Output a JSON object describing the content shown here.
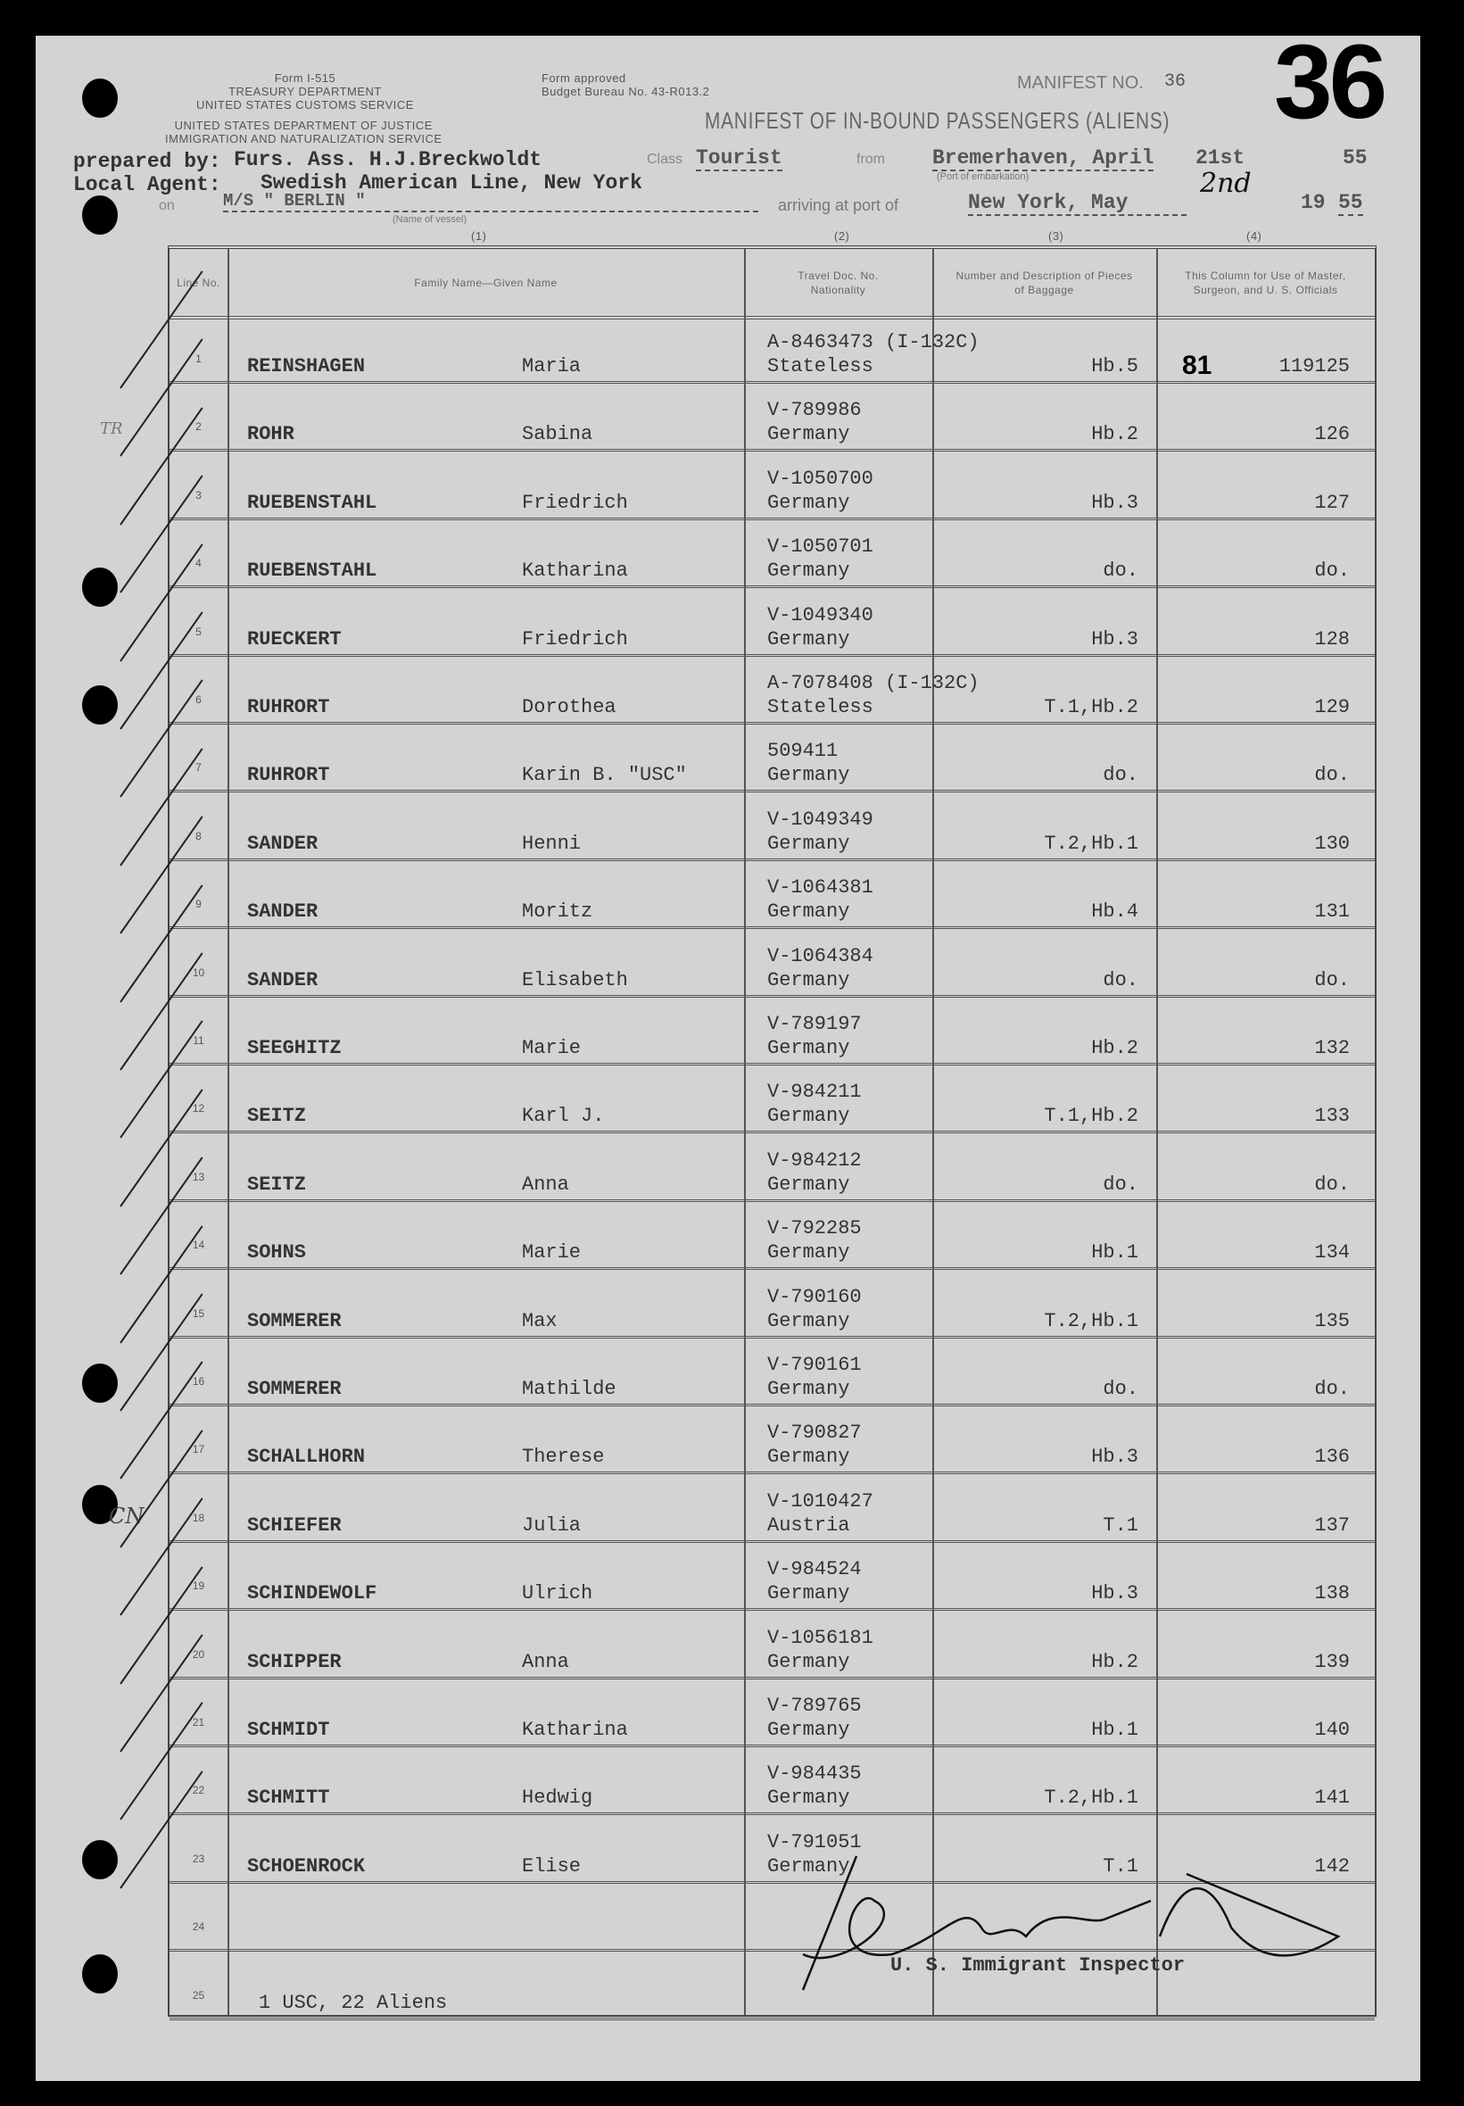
{
  "form": {
    "form_no": "Form I-515",
    "dept1": "TREASURY DEPARTMENT",
    "dept2": "UNITED STATES CUSTOMS SERVICE",
    "dept3": "UNITED STATES DEPARTMENT OF JUSTICE",
    "dept4": "IMMIGRATION AND NATURALIZATION SERVICE",
    "approved1": "Form approved",
    "approved2": "Budget Bureau No. 43-R013.2",
    "manifest_no_label": "MANIFEST NO.",
    "manifest_no_small": "36",
    "manifest_no_big": "36",
    "title": "MANIFEST OF IN-BOUND PASSENGERS (ALIENS)"
  },
  "header": {
    "prepared_by_label": "prepared by:",
    "prepared_by": "Furs. Ass. H.J.Breckwoldt",
    "class_label": "Class",
    "class": "Tourist",
    "from_label": "from",
    "from": "Bremerhaven, April",
    "from_day": "21st",
    "from_year": "55",
    "port_of_embarkation_label": "(Port of embarkation)",
    "local_agent_label": "Local Agent:",
    "local_agent": "Swedish American Line, New York",
    "on_label": "on",
    "vessel": "M/S \" BERLIN \"",
    "vessel_label": "(Name of vessel)",
    "arriving_label": "arriving at port of",
    "arrival_port": "New York,  May",
    "arrival_day": "2nd",
    "arrival_year_prefix": "19",
    "arrival_year": "55"
  },
  "columns": {
    "numbers": [
      "(1)",
      "(2)",
      "(3)",
      "(4)"
    ],
    "line_no": "Line No.",
    "name": "Family Name—Given Name",
    "travel_doc": "Travel Doc. No. Nationality",
    "baggage": "Number and Description of Pieces of Baggage",
    "officials": "This Column for Use of Master, Surgeon, and U. S. Officials"
  },
  "rows": [
    {
      "no": "1",
      "family": "REINSHAGEN",
      "given": "Maria",
      "doc": "A-8463473 (I-132C)",
      "nationality": "Stateless",
      "baggage": "Hb.5",
      "official": "119125",
      "mark": "81"
    },
    {
      "no": "2",
      "family": "ROHR",
      "given": "Sabina",
      "doc": "V-789986",
      "nationality": "Germany",
      "baggage": "Hb.2",
      "official": "126"
    },
    {
      "no": "3",
      "family": "RUEBENSTAHL",
      "given": "Friedrich",
      "doc": "V-1050700",
      "nationality": "Germany",
      "baggage": "Hb.3",
      "official": "127"
    },
    {
      "no": "4",
      "family": "RUEBENSTAHL",
      "given": "Katharina",
      "doc": "V-1050701",
      "nationality": "Germany",
      "baggage": "do.",
      "official": "do."
    },
    {
      "no": "5",
      "family": "RUECKERT",
      "given": "Friedrich",
      "doc": "V-1049340",
      "nationality": "Germany",
      "baggage": "Hb.3",
      "official": "128"
    },
    {
      "no": "6",
      "family": "RUHRORT",
      "given": "Dorothea",
      "doc": "A-7078408 (I-132C)",
      "nationality": "Stateless",
      "baggage": "T.1,Hb.2",
      "official": "129"
    },
    {
      "no": "7",
      "family": "RUHRORT",
      "given": "Karin B. \"USC\"",
      "doc": "509411",
      "nationality": "Germany",
      "baggage": "do.",
      "official": "do."
    },
    {
      "no": "8",
      "family": "SANDER",
      "given": "Henni",
      "doc": "V-1049349",
      "nationality": "Germany",
      "baggage": "T.2,Hb.1",
      "official": "130"
    },
    {
      "no": "9",
      "family": "SANDER",
      "given": "Moritz",
      "doc": "V-1064381",
      "nationality": "Germany",
      "baggage": "Hb.4",
      "official": "131"
    },
    {
      "no": "10",
      "family": "SANDER",
      "given": "Elisabeth",
      "doc": "V-1064384",
      "nationality": "Germany",
      "baggage": "do.",
      "official": "do."
    },
    {
      "no": "11",
      "family": "SEEGHITZ",
      "given": "Marie",
      "doc": "V-789197",
      "nationality": "Germany",
      "baggage": "Hb.2",
      "official": "132"
    },
    {
      "no": "12",
      "family": "SEITZ",
      "given": "Karl J.",
      "doc": "V-984211",
      "nationality": "Germany",
      "baggage": "T.1,Hb.2",
      "official": "133"
    },
    {
      "no": "13",
      "family": "SEITZ",
      "given": "Anna",
      "doc": "V-984212",
      "nationality": "Germany",
      "baggage": "do.",
      "official": "do."
    },
    {
      "no": "14",
      "family": "SOHNS",
      "given": "Marie",
      "doc": "V-792285",
      "nationality": "Germany",
      "baggage": "Hb.1",
      "official": "134"
    },
    {
      "no": "15",
      "family": "SOMMERER",
      "given": "Max",
      "doc": "V-790160",
      "nationality": "Germany",
      "baggage": "T.2,Hb.1",
      "official": "135"
    },
    {
      "no": "16",
      "family": "SOMMERER",
      "given": "Mathilde",
      "doc": "V-790161",
      "nationality": "Germany",
      "baggage": "do.",
      "official": "do."
    },
    {
      "no": "17",
      "family": "SCHALLHORN",
      "given": "Therese",
      "doc": "V-790827",
      "nationality": "Germany",
      "baggage": "Hb.3",
      "official": "136"
    },
    {
      "no": "18",
      "family": "SCHIEFER",
      "given": "Julia",
      "doc": "V-1010427",
      "nationality": "Austria",
      "baggage": "T.1",
      "official": "137"
    },
    {
      "no": "19",
      "family": "SCHINDEWOLF",
      "given": "Ulrich",
      "doc": "V-984524",
      "nationality": "Germany",
      "baggage": "Hb.3",
      "official": "138"
    },
    {
      "no": "20",
      "family": "SCHIPPER",
      "given": "Anna",
      "doc": "V-1056181",
      "nationality": "Germany",
      "baggage": "Hb.2",
      "official": "139"
    },
    {
      "no": "21",
      "family": "SCHMIDT",
      "given": "Katharina",
      "doc": "V-789765",
      "nationality": "Germany",
      "baggage": "Hb.1",
      "official": "140"
    },
    {
      "no": "22",
      "family": "SCHMITT",
      "given": "Hedwig",
      "doc": "V-984435",
      "nationality": "Germany",
      "baggage": "T.2,Hb.1",
      "official": "141"
    },
    {
      "no": "23",
      "family": "SCHOENROCK",
      "given": "Elise",
      "doc": "V-791051",
      "nationality": "Germany",
      "baggage": "T.1",
      "official": "142"
    },
    {
      "no": "24",
      "family": "",
      "given": "",
      "doc": "",
      "nationality": "",
      "baggage": "",
      "official": ""
    },
    {
      "no": "25",
      "family": "1 USC, 22 Aliens",
      "given": "",
      "doc": "",
      "nationality": "",
      "baggage": "",
      "official": ""
    }
  ],
  "footer": {
    "inspector_label": "U. S. Immigrant Inspector",
    "signature": "Masters 1455"
  },
  "margin_notes": [
    "TR",
    "CN"
  ]
}
